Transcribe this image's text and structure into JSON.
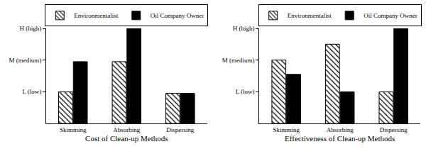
{
  "chart_data": [
    {
      "type": "bar",
      "x_label": "Cost of Clean-up Methods",
      "categories": [
        "Skimming",
        "Absorbing",
        "Dispersing"
      ],
      "series": [
        {
          "name": "Environmentalist",
          "color": "#ffffff",
          "marker": "hatched",
          "values": [
            1,
            1.95,
            0.95
          ]
        },
        {
          "name": "Oil Company Owner",
          "color": "#000000",
          "values": [
            1.95,
            3,
            0.95
          ]
        }
      ],
      "ylim": [
        0,
        3
      ],
      "yticks": [
        {
          "value": 1,
          "label": "L (low)"
        },
        {
          "value": 2,
          "label": "M (medium)"
        },
        {
          "value": 3,
          "label": "H (high)"
        }
      ],
      "legend": "top"
    },
    {
      "type": "bar",
      "x_label": "Effectiveness of Clean-up Methods",
      "categories": [
        "Skimming",
        "Absorbing",
        "Dispersing"
      ],
      "series": [
        {
          "name": "Environmentalist",
          "color": "#ffffff",
          "marker": "hatched",
          "values": [
            2,
            2.5,
            1
          ]
        },
        {
          "name": "Oil Company Owner",
          "color": "#000000",
          "values": [
            1.55,
            1,
            3
          ]
        }
      ],
      "ylim": [
        0,
        3
      ],
      "yticks": [
        {
          "value": 1,
          "label": "L (low)"
        },
        {
          "value": 2,
          "label": "M (medium)"
        },
        {
          "value": 3,
          "label": "H (high)"
        }
      ],
      "legend": "top"
    }
  ]
}
